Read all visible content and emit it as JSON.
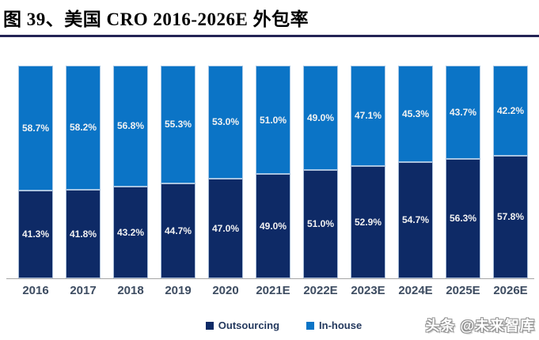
{
  "header": {
    "title": "图 39、美国 CRO 2016-2026E 外包率"
  },
  "colors": {
    "outsourcing": "#0e2a66",
    "inhouse": "#0b74c6",
    "title_rule": "#232355",
    "axis_line": "#a6a6a6",
    "data_label": "#f2f2f2",
    "tick_label": "#3d4c61"
  },
  "legend": {
    "items": [
      {
        "label": "Outsourcing",
        "color": "#0e2a66"
      },
      {
        "label": "In-house",
        "color": "#0b74c6"
      }
    ]
  },
  "watermark": "头条 @未来智库",
  "chart_data": {
    "type": "bar",
    "stacked": true,
    "percent_stacked": true,
    "title": "图 39、美国 CRO 2016-2026E 外包率",
    "categories": [
      "2016",
      "2017",
      "2018",
      "2019",
      "2020",
      "2021E",
      "2022E",
      "2023E",
      "2024E",
      "2025E",
      "2026E"
    ],
    "series": [
      {
        "name": "Outsourcing",
        "color": "#0e2a66",
        "values": [
          41.3,
          41.8,
          43.2,
          44.7,
          47.0,
          49.0,
          51.0,
          52.9,
          54.7,
          56.3,
          57.8
        ]
      },
      {
        "name": "In-house",
        "color": "#0b74c6",
        "values": [
          58.7,
          58.2,
          56.8,
          55.3,
          53.0,
          51.0,
          49.0,
          47.1,
          45.3,
          43.7,
          42.2
        ]
      }
    ],
    "xlabel": "",
    "ylabel": "",
    "ylim": [
      0,
      100
    ],
    "grid": false,
    "legend_position": "bottom",
    "data_labels": "inside-center, one decimal with % sign"
  }
}
